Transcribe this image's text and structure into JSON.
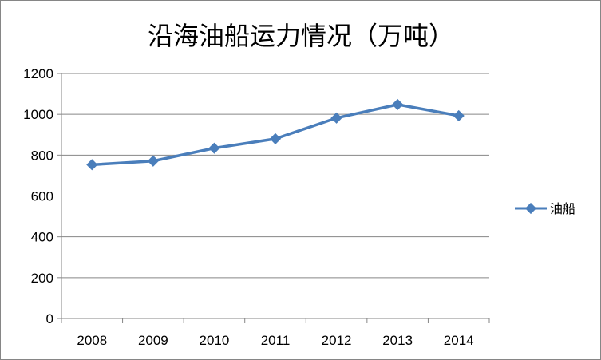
{
  "chart_data": {
    "type": "line",
    "title": "沿海油船运力情况（万吨）",
    "xlabel": "",
    "ylabel": "",
    "categories": [
      "2008",
      "2009",
      "2010",
      "2011",
      "2012",
      "2013",
      "2014"
    ],
    "series": [
      {
        "name": "油船",
        "values": [
          753,
          771,
          834,
          880,
          982,
          1048,
          993
        ],
        "color": "#4A7EBB",
        "marker": "diamond"
      }
    ],
    "ylim": [
      0,
      1200
    ],
    "yticks": [
      "0",
      "200",
      "400",
      "600",
      "800",
      "1000",
      "1200"
    ],
    "grid": true,
    "legend_position": "right"
  }
}
